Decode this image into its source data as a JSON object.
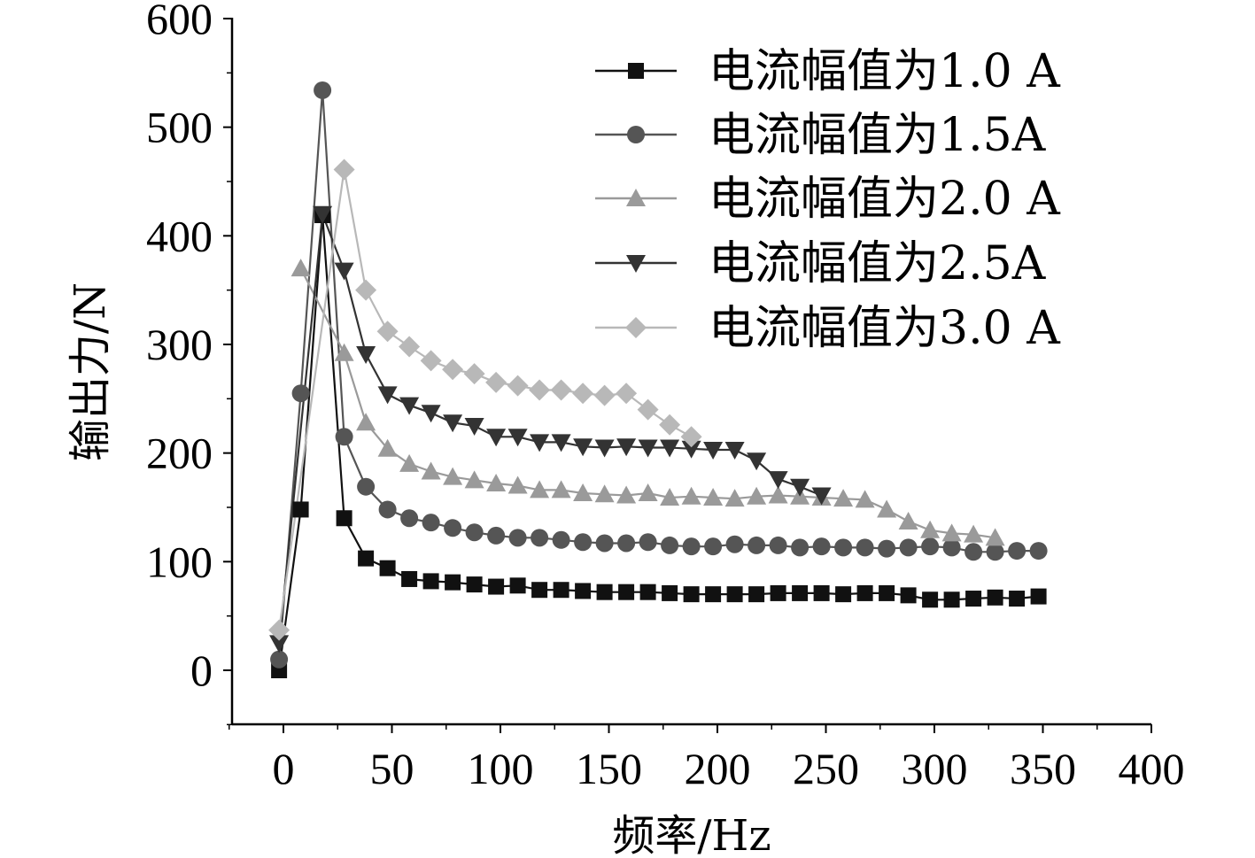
{
  "chart_data": {
    "type": "line",
    "title": "",
    "xlabel": "频率/Hz",
    "ylabel": "输出力/N",
    "xlim": [
      -25,
      400
    ],
    "ylim": [
      -50,
      600
    ],
    "xticks": [
      "0",
      "50",
      "100",
      "150",
      "200",
      "250",
      "300",
      "350",
      "400"
    ],
    "yticks": [
      "0",
      "100",
      "200",
      "300",
      "400",
      "500",
      "600"
    ],
    "legend_position": "top-right",
    "grid": false,
    "x": [
      -2,
      8,
      18,
      28,
      38,
      48,
      58,
      68,
      78,
      88,
      98,
      108,
      118,
      128,
      138,
      148,
      158,
      168,
      178,
      188,
      198,
      208,
      218,
      228,
      238,
      248,
      258,
      268,
      278,
      288,
      298,
      308,
      318,
      328,
      338,
      348
    ],
    "series": [
      {
        "name": "电流幅值为1.0 A",
        "marker": "square",
        "color": "#111111",
        "values": [
          0,
          148,
          419,
          140,
          103,
          94,
          84,
          82,
          81,
          79,
          77,
          78,
          74,
          74,
          73,
          72,
          72,
          72,
          71,
          70,
          70,
          70,
          70,
          71,
          71,
          71,
          70,
          71,
          71,
          69,
          65,
          65,
          66,
          67,
          66,
          68
        ]
      },
      {
        "name": "电流幅值为1.5A",
        "marker": "circle",
        "color": "#555555",
        "values": [
          10,
          255,
          534,
          215,
          169,
          148,
          140,
          136,
          131,
          127,
          124,
          122,
          122,
          120,
          118,
          117,
          117,
          118,
          115,
          114,
          114,
          116,
          115,
          115,
          113,
          114,
          113,
          113,
          112,
          113,
          114,
          113,
          109,
          109,
          110,
          110
        ]
      },
      {
        "name": "电流幅值为2.0 A",
        "marker": "triangle-up",
        "color": "#9a9a9a",
        "values": [
          null,
          370,
          null,
          292,
          228,
          204,
          190,
          183,
          178,
          175,
          172,
          170,
          166,
          166,
          163,
          162,
          161,
          163,
          159,
          160,
          159,
          158,
          160,
          161,
          160,
          159,
          158,
          157,
          148,
          137,
          129,
          126,
          125,
          122,
          null,
          null
        ]
      },
      {
        "name": "电流幅值为2.5A",
        "marker": "triangle-down",
        "color": "#333333",
        "values": [
          25,
          null,
          420,
          368,
          291,
          254,
          244,
          237,
          228,
          225,
          215,
          215,
          210,
          210,
          206,
          205,
          206,
          205,
          205,
          204,
          203,
          203,
          193,
          176,
          169,
          161,
          null,
          null,
          null,
          null,
          null,
          null,
          null,
          null,
          null,
          null
        ]
      },
      {
        "name": "电流幅值为3.0 A",
        "marker": "diamond",
        "color": "#b8b8b8",
        "values": [
          37,
          null,
          null,
          461,
          350,
          312,
          298,
          285,
          277,
          273,
          265,
          262,
          258,
          258,
          255,
          253,
          255,
          240,
          226,
          215,
          null,
          null,
          null,
          null,
          null,
          null,
          null,
          null,
          null,
          null,
          null,
          null,
          null,
          null,
          null,
          null
        ]
      }
    ]
  }
}
